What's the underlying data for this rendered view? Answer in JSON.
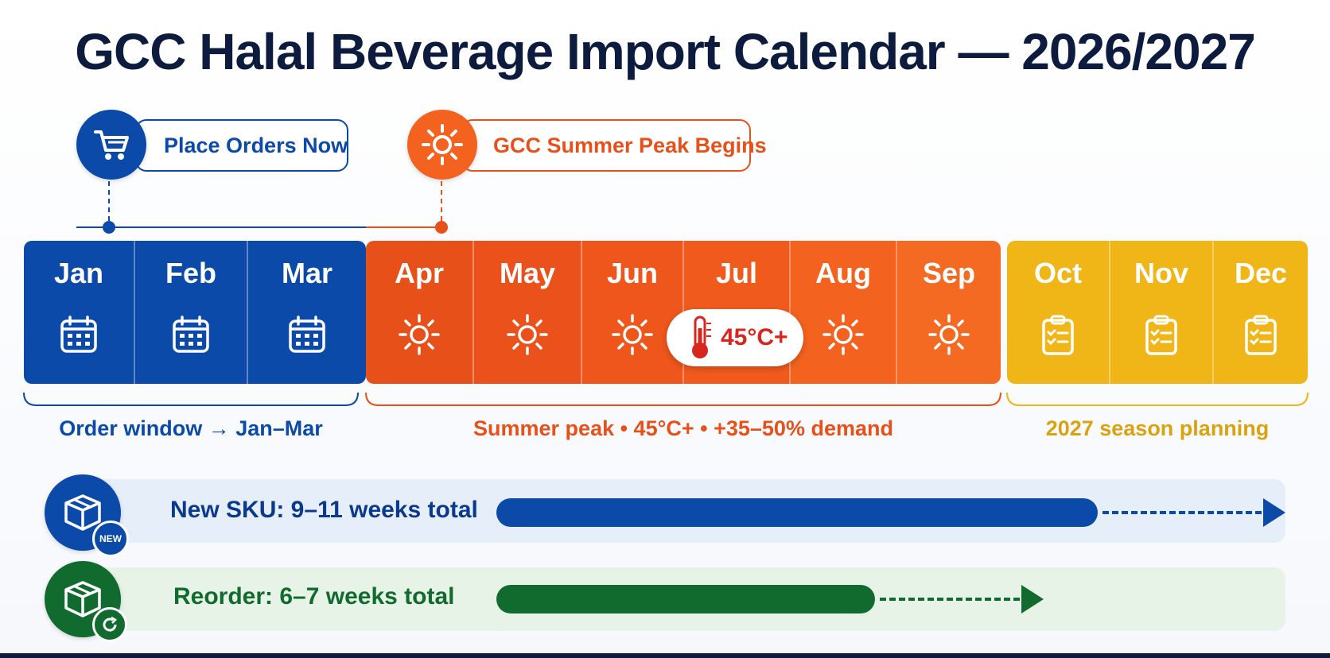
{
  "title": "GCC Halal Beverage Import Calendar — 2026/2027",
  "callouts": {
    "orders": {
      "label": "Place Orders Now",
      "icon": "shopping-cart-icon"
    },
    "summer": {
      "label": "GCC Summer Peak Begins",
      "icon": "sun-icon"
    }
  },
  "months": [
    {
      "name": "Jan",
      "group": "order",
      "icon": "calendar-icon"
    },
    {
      "name": "Feb",
      "group": "order",
      "icon": "calendar-icon"
    },
    {
      "name": "Mar",
      "group": "order",
      "icon": "calendar-icon"
    },
    {
      "name": "Apr",
      "group": "summer",
      "icon": "sun-icon"
    },
    {
      "name": "May",
      "group": "summer",
      "icon": "sun-icon"
    },
    {
      "name": "Jun",
      "group": "summer",
      "icon": "sun-icon"
    },
    {
      "name": "Jul",
      "group": "summer",
      "icon": "thermometer-icon"
    },
    {
      "name": "Aug",
      "group": "summer",
      "icon": "sun-icon"
    },
    {
      "name": "Sep",
      "group": "summer",
      "icon": "sun-icon"
    },
    {
      "name": "Oct",
      "group": "planning",
      "icon": "clipboard-icon"
    },
    {
      "name": "Nov",
      "group": "planning",
      "icon": "clipboard-icon"
    },
    {
      "name": "Dec",
      "group": "planning",
      "icon": "clipboard-icon"
    }
  ],
  "temperature_badge": "45°C+",
  "segments": {
    "order": "Order window → Jan–Mar",
    "summer": "Summer peak • 45°C+ • +35–50% demand",
    "planning": "2027 season planning"
  },
  "lanes": {
    "new_sku": {
      "label": "New SKU: 9–11 weeks total",
      "badge": "NEW",
      "weeks_min": 9,
      "weeks_max": 11
    },
    "reorder": {
      "label": "Reorder: 6–7 weeks total",
      "weeks_min": 6,
      "weeks_max": 7
    }
  },
  "colors": {
    "navy": "#0d1b3e",
    "blue": "#0b4aa8",
    "orange": "#e8501a",
    "orange_light": "#f3621f",
    "yellow": "#f0b517",
    "yellow_text": "#d9a20f",
    "green": "#126b2e",
    "lane_blue_bg": "#e6eefa",
    "lane_green_bg": "#e7f3e7"
  }
}
